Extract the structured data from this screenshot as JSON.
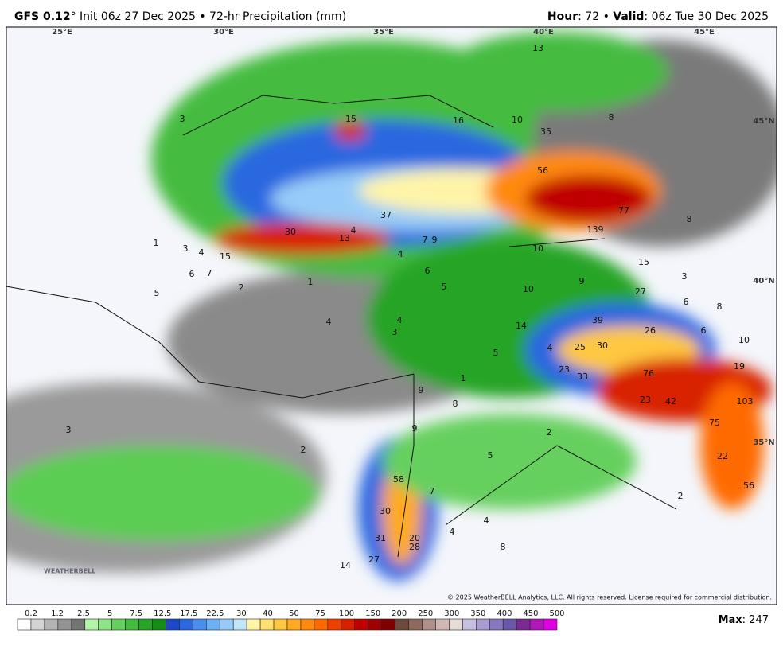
{
  "header": {
    "model": "GFS 0.12",
    "degree": "°",
    "subtitle": "Init 06z 27 Dec 2025 • 72-hr Precipitation (mm)",
    "hour_key": "Hour",
    "hour_value": ": 72 • ",
    "valid_key": "Valid",
    "valid_value": ": 06z Tue 30 Dec 2025"
  },
  "map": {
    "coords": [
      "25°E",
      "30°E",
      "35°E",
      "40°E",
      "45°E",
      "45°N",
      "40°N",
      "35°N"
    ],
    "labels": [
      15,
      16,
      13,
      10,
      8,
      35,
      56,
      77,
      139,
      8,
      37,
      30,
      13,
      15,
      10,
      15,
      3,
      3,
      4,
      6,
      7,
      1,
      5,
      2,
      1,
      4,
      6,
      5,
      7,
      9,
      4,
      10,
      9,
      27,
      6,
      3,
      8,
      4,
      4,
      3,
      14,
      39,
      30,
      25,
      26,
      6,
      10,
      4,
      5,
      19,
      23,
      33,
      76,
      1,
      9,
      8,
      23,
      42,
      103,
      75,
      3,
      2,
      9,
      2,
      5,
      22,
      58,
      7,
      56,
      2,
      30,
      4,
      4,
      31,
      20,
      28,
      8,
      27,
      14
    ],
    "logo": "WEATHERBELL",
    "copyright": "© 2025 WeatherBELL Analytics, LLC. All rights reserved. License required for commercial distribution."
  },
  "colorbar": {
    "labels": [
      "0.2",
      "1.2",
      "2.5",
      "5",
      "7.5",
      "12.5",
      "17.5",
      "22.5",
      "30",
      "40",
      "50",
      "75",
      "100",
      "150",
      "200",
      "250",
      "300",
      "350",
      "400",
      "450",
      "500"
    ],
    "colors": [
      "#ffffff",
      "#d4d4d4",
      "#b4b4b4",
      "#949494",
      "#747474",
      "#b0f5a8",
      "#8ee486",
      "#66d05e",
      "#44bc40",
      "#28a428",
      "#148c16",
      "#1e48c8",
      "#2c68e0",
      "#4a8ef0",
      "#6cb0f6",
      "#98ccf8",
      "#c0e6fa",
      "#fff4a8",
      "#ffe070",
      "#ffc840",
      "#ffaa20",
      "#ff8a10",
      "#ff6a00",
      "#f04000",
      "#d82000",
      "#c00000",
      "#a00000",
      "#800000",
      "#6e4a3e",
      "#8e6a5e",
      "#b0908a",
      "#d0b8b4",
      "#e8dcd8",
      "#c8c0e0",
      "#a89cd0",
      "#8878c0",
      "#6c58a8",
      "#7a2a90",
      "#b018b8",
      "#e000e0"
    ],
    "max_key": "Max",
    "max_value": ": 247"
  }
}
